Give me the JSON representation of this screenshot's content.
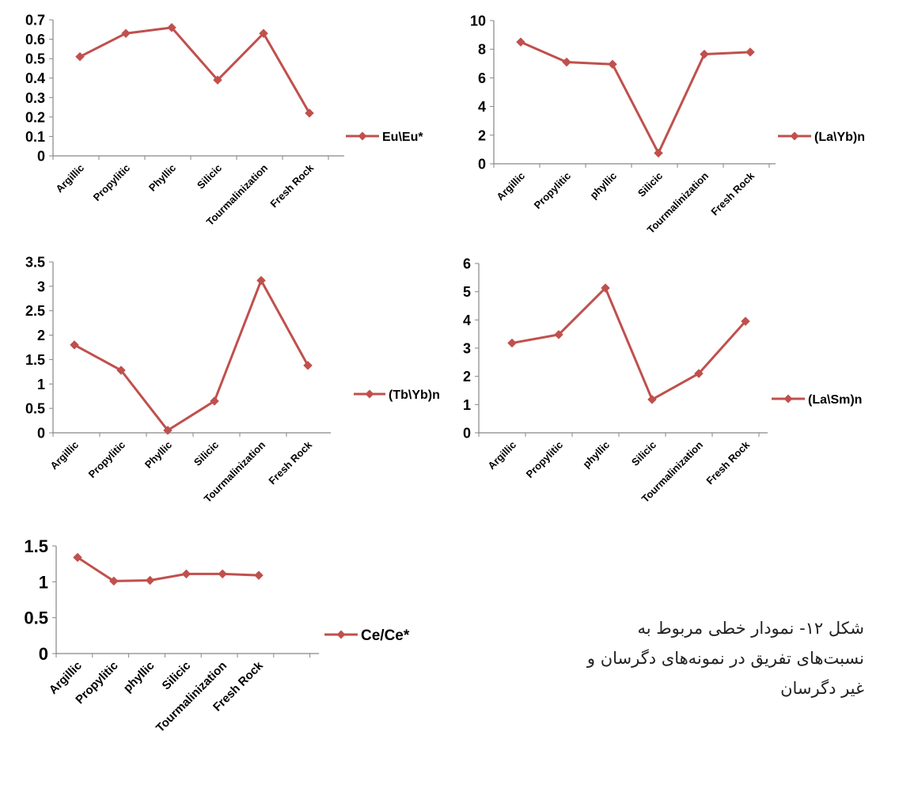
{
  "colors": {
    "series": "#C0504D",
    "axis": "#868686",
    "text": "#000000"
  },
  "caption": {
    "line1": "شکل ۱۲- نمودار خطی مربوط به",
    "line2": "نسبت‌های تفریق در نمونه‌های دگرسان و",
    "line3": "غیر دگرسان"
  },
  "chart_data": [
    {
      "type": "line",
      "title": "",
      "xlabel": "",
      "ylabel": "",
      "categories": [
        "Argillic",
        "Propylitic",
        "Phyllic",
        "Silicic",
        "Tourmalinization",
        "Fresh Rock"
      ],
      "series": [
        {
          "name": "Eu\\Eu*",
          "values": [
            0.51,
            0.63,
            0.66,
            0.39,
            0.63,
            0.22
          ]
        }
      ],
      "ylim": [
        0,
        0.7
      ],
      "yticks": [
        "0",
        "0.1",
        "0.2",
        "0.3",
        "0.4",
        "0.5",
        "0.6",
        "0.7"
      ],
      "legend": "right",
      "grid": false
    },
    {
      "type": "line",
      "title": "",
      "xlabel": "",
      "ylabel": "",
      "categories": [
        "Argillic",
        "Propylitic",
        "phyllic",
        "Silicic",
        "Tourmalinization",
        "Fresh Rock"
      ],
      "series": [
        {
          "name": "(La\\Yb)n",
          "values": [
            8.5,
            7.1,
            6.95,
            0.75,
            7.65,
            7.8
          ]
        }
      ],
      "ylim": [
        0,
        10
      ],
      "yticks": [
        "0",
        "2",
        "4",
        "6",
        "8",
        "10"
      ],
      "legend": "right",
      "grid": false
    },
    {
      "type": "line",
      "title": "",
      "xlabel": "",
      "ylabel": "",
      "categories": [
        "Argillic",
        "Propylitic",
        "Phyllic",
        "Silicic",
        "Tourmalinization",
        "Fresh Rock"
      ],
      "series": [
        {
          "name": "(Tb\\Yb)n",
          "values": [
            1.8,
            1.28,
            0.05,
            0.65,
            3.12,
            1.38
          ]
        }
      ],
      "ylim": [
        0,
        3.5
      ],
      "yticks": [
        "0",
        "0.5",
        "1",
        "1.5",
        "2",
        "2.5",
        "3",
        "3.5"
      ],
      "legend": "right",
      "grid": false
    },
    {
      "type": "line",
      "title": "",
      "xlabel": "",
      "ylabel": "",
      "categories": [
        "Argillic",
        "Propylitic",
        "phyllic",
        "Silicic",
        "Tourmalinization",
        "Fresh Rock"
      ],
      "series": [
        {
          "name": "(La\\Sm)n",
          "values": [
            3.18,
            3.48,
            5.13,
            1.18,
            2.1,
            3.95
          ]
        }
      ],
      "ylim": [
        0,
        6
      ],
      "yticks": [
        "0",
        "1",
        "2",
        "3",
        "4",
        "5",
        "6"
      ],
      "legend": "right",
      "grid": false
    },
    {
      "type": "line",
      "title": "",
      "xlabel": "",
      "ylabel": "",
      "categories": [
        "Argillic",
        "Propylitic",
        "phyllic",
        "Silicic",
        "Tourmalinization",
        "Fresh Rock"
      ],
      "series": [
        {
          "name": "Ce/Ce*",
          "values": [
            1.34,
            1.01,
            1.02,
            1.11,
            1.11,
            1.09
          ]
        }
      ],
      "ylim": [
        0,
        1.5
      ],
      "yticks": [
        "0",
        "0.5",
        "1",
        "1.5"
      ],
      "legend": "right",
      "grid": false
    }
  ]
}
